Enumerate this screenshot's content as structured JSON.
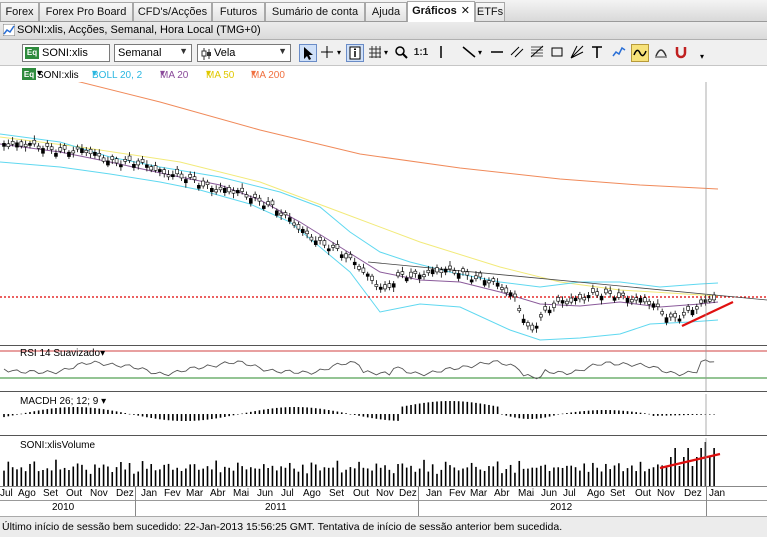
{
  "tabs": [
    {
      "label": "Forex"
    },
    {
      "label": "Forex Pro Board"
    },
    {
      "label": "CFD's/Acções"
    },
    {
      "label": "Futuros"
    },
    {
      "label": "Sumário de conta"
    },
    {
      "label": "Ajuda"
    },
    {
      "label": "Gráficos",
      "close": "✕"
    },
    {
      "label": "ETFs"
    }
  ],
  "window_title": "SONI:xlis, Acções, Semanal, Hora Local (TMG+0)",
  "toolbar": {
    "symbol": "SONI:xlis",
    "period": "Semanal",
    "chart_type": "Vela",
    "scale_label": "1:1"
  },
  "legend": {
    "symbol": "SONI:xlis",
    "boll": "BOLL 20, 2",
    "ma20": "MA 20",
    "ma50": "MA 50",
    "ma200": "MA 200"
  },
  "panes": {
    "rsi": "RSI 14 Suavizado",
    "macd": "MACDH 26; 12; 9",
    "volume": "SONI:xlisVolume"
  },
  "axis": {
    "months": [
      "Jul",
      "Ago",
      "Set",
      "Out",
      "Nov",
      "Dez",
      "Jan",
      "Fev",
      "Mar",
      "Abr",
      "Mai",
      "Jun",
      "Jul",
      "Ago",
      "Set",
      "Out",
      "Nov",
      "Dez",
      "Jan",
      "Fev",
      "Mar",
      "Abr",
      "Mai",
      "Jun",
      "Jul",
      "Ago",
      "Set",
      "Out",
      "Nov",
      "Dez",
      "Jan"
    ],
    "years": [
      "2010",
      "2011",
      "2012"
    ]
  },
  "status": "Último início de sessão bem sucedido: 22-Jan-2013 15:56:25 GMT. Tentativa de início de sessão anterior bem sucedida.",
  "colors": {
    "ma200": "#f08a5a",
    "ma50": "#f2ea7a",
    "ma20": "#8a5a9a",
    "boll": "#5fd8f0",
    "ref_line": "#e00000",
    "trend_line": "#e01010",
    "rsi_line": "#555555"
  }
}
